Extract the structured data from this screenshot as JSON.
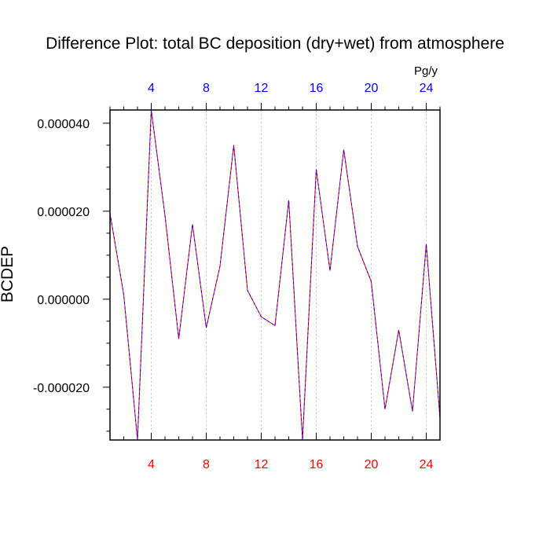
{
  "chart_data": {
    "type": "line",
    "title": "Difference Plot: total BC deposition (dry+wet) from atmosphere",
    "ylabel": "BCDEP",
    "top_axis_unit": "Pg/y",
    "xlim": [
      1,
      25
    ],
    "ylim": [
      -3.2e-05,
      4.3e-05
    ],
    "x_ticks": [
      4,
      8,
      12,
      16,
      20,
      24
    ],
    "x_tick_labels": [
      "4",
      "8",
      "12",
      "16",
      "20",
      "24"
    ],
    "y_ticks": [
      -2e-05,
      0,
      2e-05,
      4e-05
    ],
    "y_tick_labels": [
      "-0.000020",
      "0.000000",
      "0.000020",
      "0.000040"
    ],
    "grid": "vertical dashed at major x ticks",
    "colors": {
      "line_primary": "#ff0000",
      "line_overlay": "#0000ff",
      "bottom_tick_labels": "#ff0000",
      "top_tick_labels": "#0000ff",
      "grid": "#b4b4b4",
      "axes": "#000000"
    },
    "series": [
      {
        "x": [
          1,
          2,
          3,
          4,
          5,
          6,
          7,
          8,
          9,
          10,
          11,
          12,
          13,
          14,
          15,
          16,
          17,
          18,
          19,
          20,
          21,
          22,
          23,
          24,
          25
        ],
        "y": [
          1.95e-05,
          1e-06,
          -3.2e-05,
          4.3e-05,
          1.9e-05,
          -9e-06,
          1.7e-05,
          -6.5e-06,
          7.5e-06,
          3.5e-05,
          2e-06,
          -4e-06,
          -6e-06,
          2.25e-05,
          -3.2e-05,
          2.95e-05,
          6.5e-06,
          3.4e-05,
          1.2e-05,
          4e-06,
          -2.5e-05,
          -7e-06,
          -2.55e-05,
          1.25e-05,
          -2.7e-05
        ]
      }
    ]
  }
}
